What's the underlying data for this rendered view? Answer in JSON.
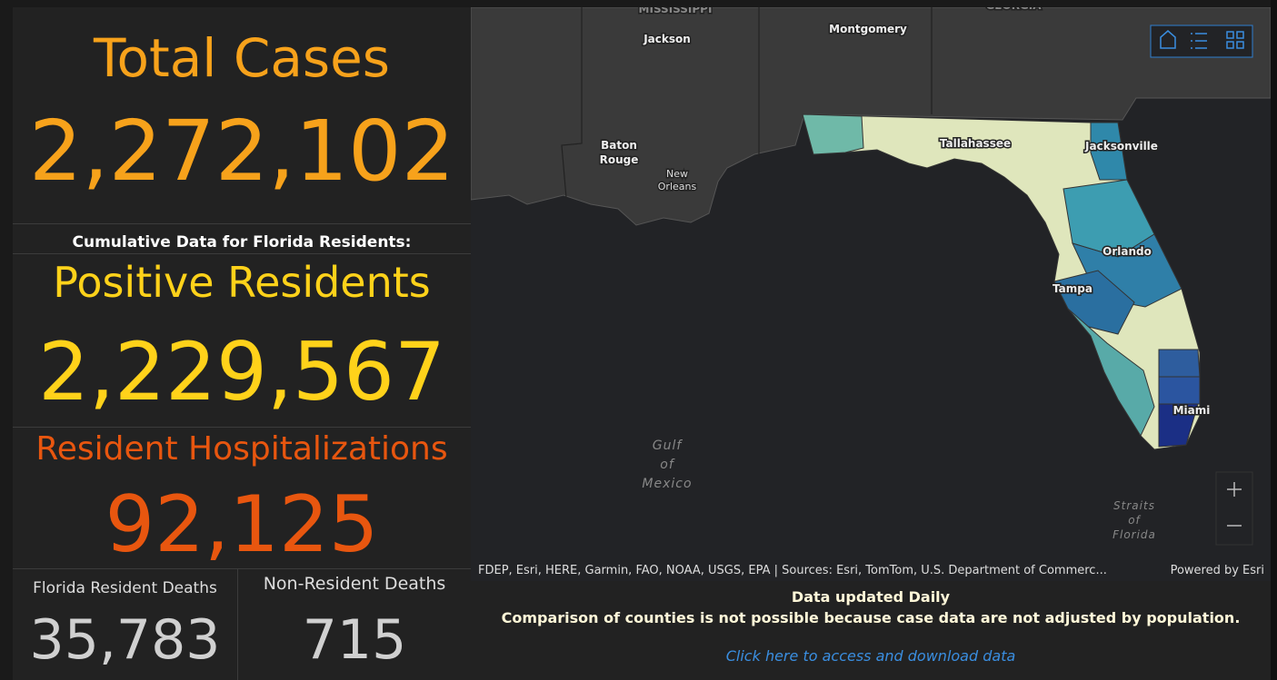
{
  "total_cases": {
    "title": "Total Cases",
    "value": "2,272,102"
  },
  "cumulative_note": "Cumulative Data for Florida Residents:",
  "positive_residents": {
    "title": "Positive Residents",
    "value": "2,229,567"
  },
  "hospitalizations": {
    "title": "Resident Hospitalizations",
    "value": "92,125"
  },
  "resident_deaths": {
    "title": "Florida Resident Deaths",
    "value": "35,783"
  },
  "non_resident_deaths": {
    "title": "Non-Resident Deaths",
    "value": "715"
  },
  "map": {
    "labels": [
      "MISSISSIPPI",
      "GEORGIA",
      "Jackson",
      "Montgomery",
      "Tallahassee",
      "Jacksonville",
      "Orlando",
      "Tampa",
      "Miami"
    ],
    "baton_rouge": [
      "Baton",
      "Rouge"
    ],
    "new_orleans": [
      "New",
      "Orleans"
    ],
    "gulf": [
      "Gulf",
      "of",
      "Mexico"
    ],
    "straits": [
      "Straits",
      "of",
      "Florida"
    ],
    "attribution": "FDEP, Esri, HERE, Garmin, FAO, NOAA, USGS, EPA | Sources: Esri, TomTom, U.S. Department of Commerc...",
    "powered_by": "Powered by Esri"
  },
  "footer": {
    "line1": "Data updated Daily",
    "line2": "Comparison of counties is not possible because case data are not adjusted by population.",
    "link": "Click here to access and download data"
  }
}
